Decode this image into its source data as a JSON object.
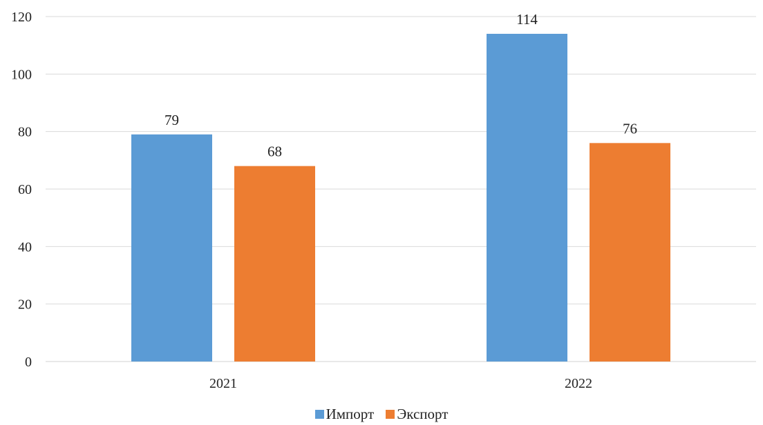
{
  "chart_data": {
    "type": "bar",
    "title": "",
    "xlabel": "",
    "ylabel": "",
    "categories": [
      "2021",
      "2022"
    ],
    "series": [
      {
        "name": "Импорт",
        "values": [
          79,
          114
        ],
        "color": "#5B9BD5"
      },
      {
        "name": "Экспорт",
        "values": [
          68,
          76
        ],
        "color": "#ED7D31"
      }
    ],
    "ylim": [
      0,
      120
    ],
    "yticks": [
      0,
      20,
      40,
      60,
      80,
      100,
      120
    ],
    "grid": true,
    "data_labels": true,
    "legend_position": "bottom"
  }
}
